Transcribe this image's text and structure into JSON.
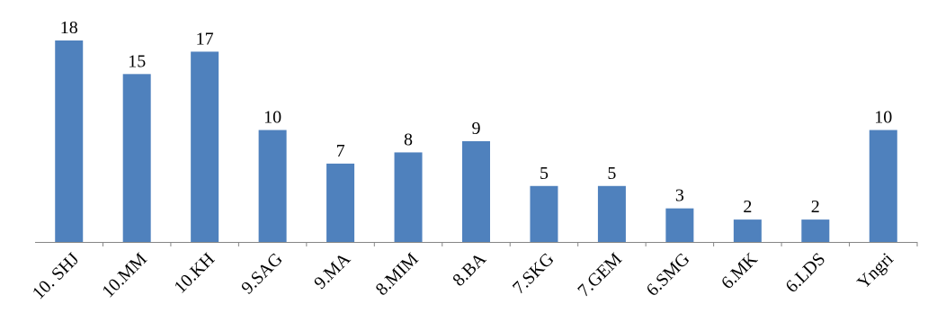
{
  "colors": {
    "bar": "#4f81bd",
    "axis": "#868686",
    "text": "#000000"
  },
  "chart_data": {
    "type": "bar",
    "title": "",
    "xlabel": "",
    "ylabel": "",
    "categories": [
      "10. SHJ",
      "10.MM",
      "10.KH",
      "9.SAG",
      "9.MA",
      "8.MIM",
      "8.BA",
      "7.SKG",
      "7.GEM",
      "6.SMG",
      "6.MK",
      "6.LDS",
      "Yngri"
    ],
    "values": [
      18,
      15,
      17,
      10,
      7,
      8,
      9,
      5,
      5,
      3,
      2,
      2,
      10
    ],
    "data_labels": [
      "18",
      "15",
      "17",
      "10",
      "7",
      "8",
      "9",
      "5",
      "5",
      "3",
      "2",
      "2",
      "10"
    ],
    "ylim": [
      0,
      18
    ],
    "grid": false,
    "legend": "none",
    "y_axis_visible": false
  }
}
